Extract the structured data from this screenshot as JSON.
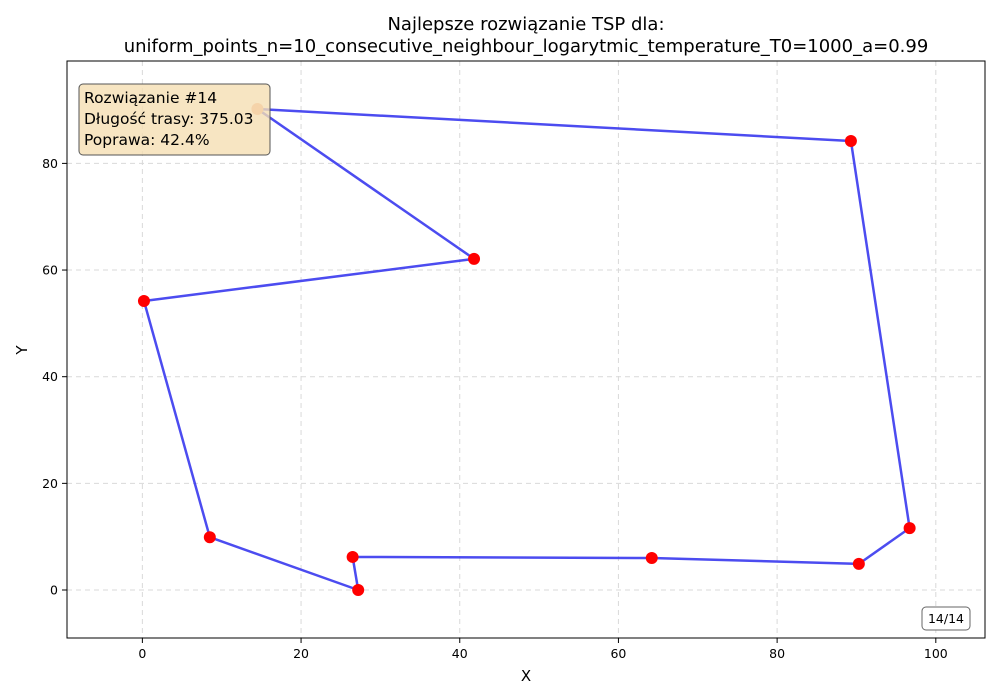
{
  "chart_data": {
    "type": "line",
    "title_line1": "Najlepsze rozwiązanie TSP dla:",
    "title_line2": "uniform_points_n=10_consecutive_neighbour_logarytmic_temperature_T0=1000_a=0.99",
    "xlabel": "X",
    "ylabel": "Y",
    "xlim": [
      -9.5,
      106.2
    ],
    "ylim": [
      -9,
      99.2
    ],
    "xticks": [
      0,
      20,
      40,
      60,
      80,
      100
    ],
    "yticks": [
      0,
      20,
      40,
      60,
      80
    ],
    "grid": true,
    "route": [
      {
        "x": 14.5,
        "y": 90.2
      },
      {
        "x": 89.3,
        "y": 84.2
      },
      {
        "x": 96.7,
        "y": 11.6
      },
      {
        "x": 90.3,
        "y": 4.9
      },
      {
        "x": 64.2,
        "y": 6.0
      },
      {
        "x": 26.5,
        "y": 6.2
      },
      {
        "x": 27.2,
        "y": 0.0
      },
      {
        "x": 8.5,
        "y": 9.9
      },
      {
        "x": 0.2,
        "y": 54.2
      },
      {
        "x": 41.8,
        "y": 62.1
      },
      {
        "x": 14.5,
        "y": 90.2
      }
    ],
    "start_point": {
      "x": 14.5,
      "y": 90.2
    },
    "colors": {
      "route": "#3333ee",
      "city": "#ff0000",
      "start": "#f4a582",
      "info_bg": "#f5deb3"
    }
  },
  "info_box": {
    "line1": "Rozwiązanie #14",
    "line2": "Długość trasy: 375.03",
    "line3": "Poprawa: 42.4%"
  },
  "counter": "14/14"
}
